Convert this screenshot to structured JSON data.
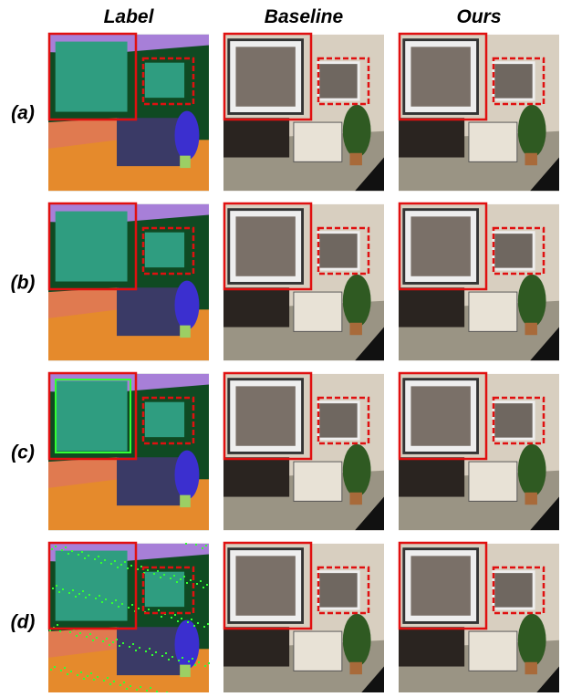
{
  "columns": [
    "Label",
    "Baseline",
    "Ours"
  ],
  "rows": [
    "(a)",
    "(b)",
    "(c)",
    "(d)"
  ]
}
